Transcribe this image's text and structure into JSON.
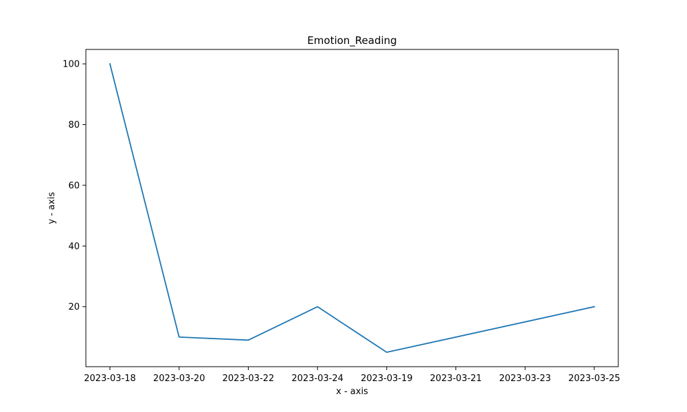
{
  "chart_data": {
    "type": "line",
    "title": "Emotion_Reading",
    "xlabel": "x - axis",
    "ylabel": "y - axis",
    "categories": [
      "2023-03-18",
      "2023-03-20",
      "2023-03-22",
      "2023-03-24",
      "2023-03-19",
      "2023-03-21",
      "2023-03-23",
      "2023-03-25"
    ],
    "series": [
      {
        "color": "#1f77b4",
        "x": [
          "2023-03-18",
          "2023-03-20",
          "2023-03-22",
          "2023-03-24",
          "2023-03-19",
          "2023-03-21",
          "2023-03-23",
          "2023-03-25",
          "2023-03-19",
          "2023-03-21",
          "2023-03-23",
          "2023-03-25"
        ],
        "values": [
          100,
          10,
          9,
          20,
          5,
          10,
          15,
          20,
          5,
          10,
          15,
          20
        ]
      }
    ],
    "yticks": [
      20,
      40,
      60,
      80,
      100
    ],
    "ylim": [
      0.25,
      104.75
    ],
    "grid": false,
    "legend": "none"
  }
}
